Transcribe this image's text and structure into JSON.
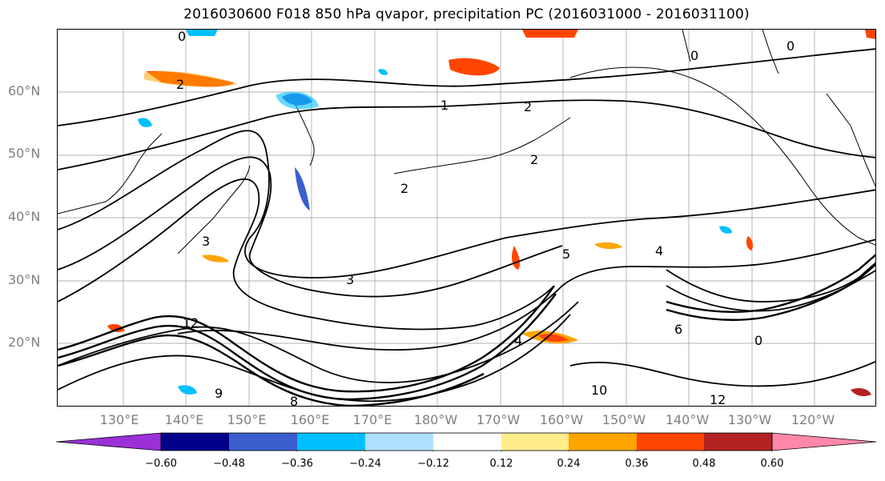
{
  "title": "2016030600 F018 850 hPa qvapor, precipitation PC (2016031000 - 2016031100)",
  "lat_labels": [
    "60°N",
    "50°N",
    "40°N",
    "30°N",
    "20°N"
  ],
  "lon_labels": [
    "130°E",
    "140°E",
    "150°E",
    "160°E",
    "170°E",
    "180°W",
    "170°W",
    "160°W",
    "150°W",
    "140°W",
    "130°W",
    "120°W"
  ],
  "contour_labels": [
    "0",
    "0",
    "0",
    "0",
    "1",
    "2",
    "2",
    "2",
    "2",
    "3",
    "3",
    "4",
    "4",
    "5",
    "6",
    "8",
    "9",
    "10",
    "12",
    "12"
  ],
  "colorbar": {
    "ticks": [
      "−0.60",
      "−0.48",
      "−0.36",
      "−0.24",
      "−0.12",
      "0.12",
      "0.24",
      "0.36",
      "0.48",
      "0.60"
    ],
    "colors": [
      "#9b30d9",
      "#00008b",
      "#3a5fcd",
      "#00bfff",
      "#b0e0ff",
      "#ffffff",
      "#ffec8b",
      "#ffa500",
      "#ff4500",
      "#b22222",
      "#ff88aa"
    ]
  },
  "colors": {
    "contour": "#000000",
    "gridline": "#999999",
    "axis_label": "#808080"
  }
}
